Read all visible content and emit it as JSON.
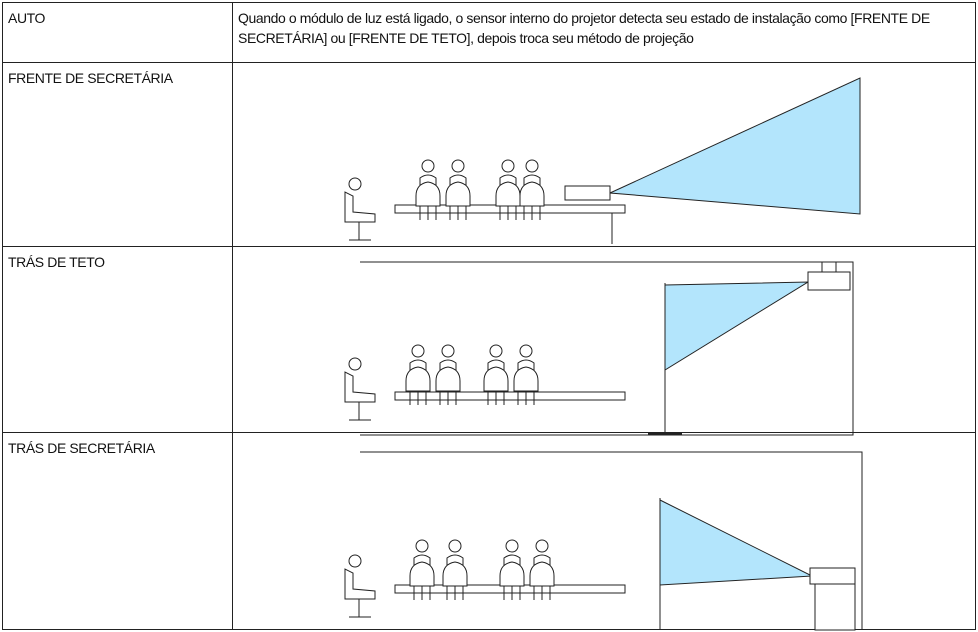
{
  "table": {
    "rows": [
      [
        "AUTO",
        "Quando o módulo de luz está ligado, o sensor interno do projetor detecta seu estado de instalação como [FRENTE DE SECRETÁRIA] ou [FRENTE DE TETO], depois troca seu método de projeção"
      ],
      [
        "FRENTE DE SECRETÁRIA"
      ],
      [
        "TRÁS DE TETO"
      ],
      [
        "TRÁS DE SECRETÁRIA"
      ]
    ]
  }
}
